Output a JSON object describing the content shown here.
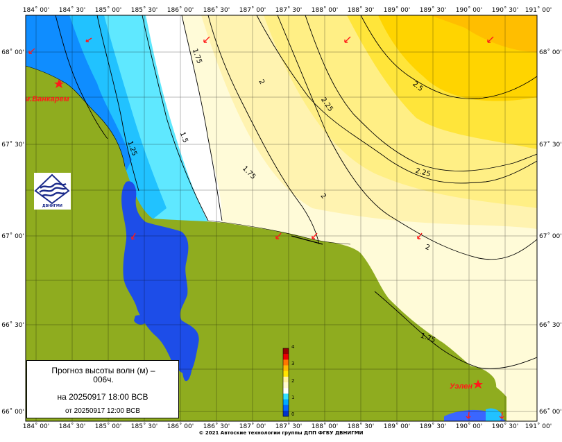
{
  "title_lines": [
    "Прогноз высоты волн (м) –",
    "006ч."
  ],
  "valid_time": "на 20250917 18:00 ВСВ",
  "issued_time": "от 20250917 12:00 ВСВ",
  "copyright": "© 2021 Автоские технологии группы ДПП ФГБУ ДВНИГМИ",
  "logo_text": "ДВНИГМИ",
  "logo_icon": "wave-globe-icon",
  "places": [
    {
      "name": "м.Ванкарем"
    },
    {
      "name": "Уэлен"
    }
  ],
  "lon_labels": [
    "184˚ 00'",
    "184˚ 30'",
    "185˚ 00'",
    "185˚ 30'",
    "186˚ 00'",
    "186˚ 30'",
    "187˚ 00'",
    "187˚ 30'",
    "188˚ 00'",
    "188˚ 30'",
    "189˚ 00'",
    "189˚ 30'",
    "190˚ 00'",
    "190˚ 30'",
    "191˚ 00'"
  ],
  "lat_labels": [
    "68˚ 00'",
    "67˚ 30'",
    "67˚ 00'",
    "66˚ 30'",
    "66˚ 00'"
  ],
  "contour_labels": [
    "1.75",
    "2",
    "2.25",
    "2.5",
    "1.25",
    "1.5",
    "1.75",
    "2",
    "2.25",
    "2",
    "1.75"
  ],
  "colorbar": {
    "ticks": [
      "4",
      "3",
      "2",
      "1",
      "0"
    ],
    "colors": [
      "#0033cc",
      "#0066ff",
      "#00aaff",
      "#33e0ff",
      "#ffffff",
      "#fffbd0",
      "#fff3a0",
      "#ffe400",
      "#ffbb00",
      "#ff7700",
      "#ee0000",
      "#990000"
    ]
  },
  "colors": {
    "land": "#8fac1f",
    "lagoon": "#1d4de8",
    "wave_low": "#00aaff",
    "wave_high": "#ffbb00",
    "marker": "#ff1a1a"
  }
}
